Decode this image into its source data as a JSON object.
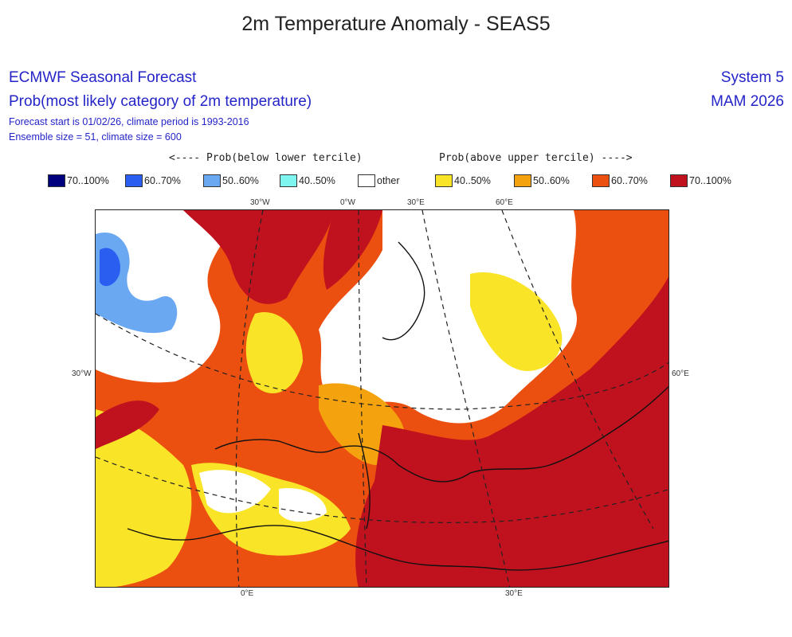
{
  "title": "2m Temperature Anomaly - SEAS5",
  "header": {
    "left": {
      "line1": "ECMWF Seasonal Forecast",
      "line2": "Prob(most likely category of 2m temperature)",
      "line3": "Forecast start is 01/02/26, climate period is 1993-2016",
      "line4": "Ensemble size = 51, climate size = 600"
    },
    "right": {
      "system": "System 5",
      "season": "MAM 2026"
    }
  },
  "tercile_labels": {
    "below": "<---- Prob(below lower tercile)",
    "above": "Prob(above upper tercile) ---->"
  },
  "legend": [
    {
      "label": "70..100%",
      "color": "#00007f"
    },
    {
      "label": "60..70%",
      "color": "#2a5ef0"
    },
    {
      "label": "50..60%",
      "color": "#6aa8f2"
    },
    {
      "label": "40..50%",
      "color": "#7ff5f0"
    },
    {
      "label": "other",
      "color": "#ffffff"
    },
    {
      "label": "40..50%",
      "color": "#f9e428"
    },
    {
      "label": "50..60%",
      "color": "#f4a20e"
    },
    {
      "label": "60..70%",
      "color": "#ec5010"
    },
    {
      "label": "70..100%",
      "color": "#c0111e"
    }
  ],
  "grid_labels": {
    "top": [
      "30°W",
      "0°W",
      "30°E",
      "60°E"
    ],
    "left": "30°W",
    "right": "60°E",
    "bottom": [
      "0°E",
      "30°E"
    ]
  }
}
